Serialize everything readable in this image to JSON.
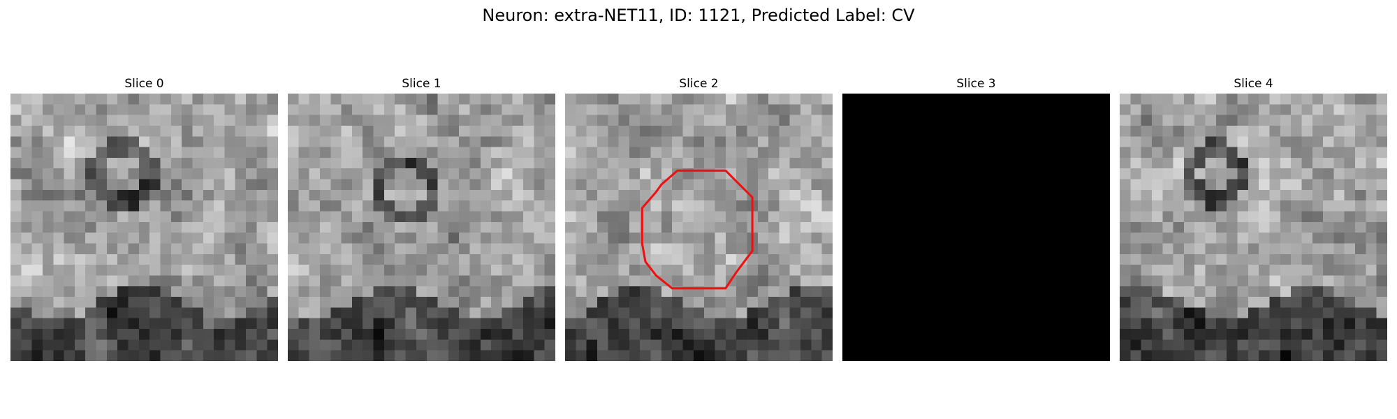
{
  "title": "Neuron: extra-NET11, ID: 1121, Predicted Label: CV",
  "slices": [
    {
      "label": "Slice 0",
      "seed": 11,
      "blank": false,
      "contour": false
    },
    {
      "label": "Slice 1",
      "seed": 23,
      "blank": false,
      "contour": false
    },
    {
      "label": "Slice 2",
      "seed": 37,
      "blank": false,
      "contour": true
    },
    {
      "label": "Slice 3",
      "seed": 0,
      "blank": true,
      "contour": false
    },
    {
      "label": "Slice 4",
      "seed": 53,
      "blank": false,
      "contour": false
    }
  ],
  "colors": {
    "contour": "#ee1111",
    "blank": "#000000"
  }
}
